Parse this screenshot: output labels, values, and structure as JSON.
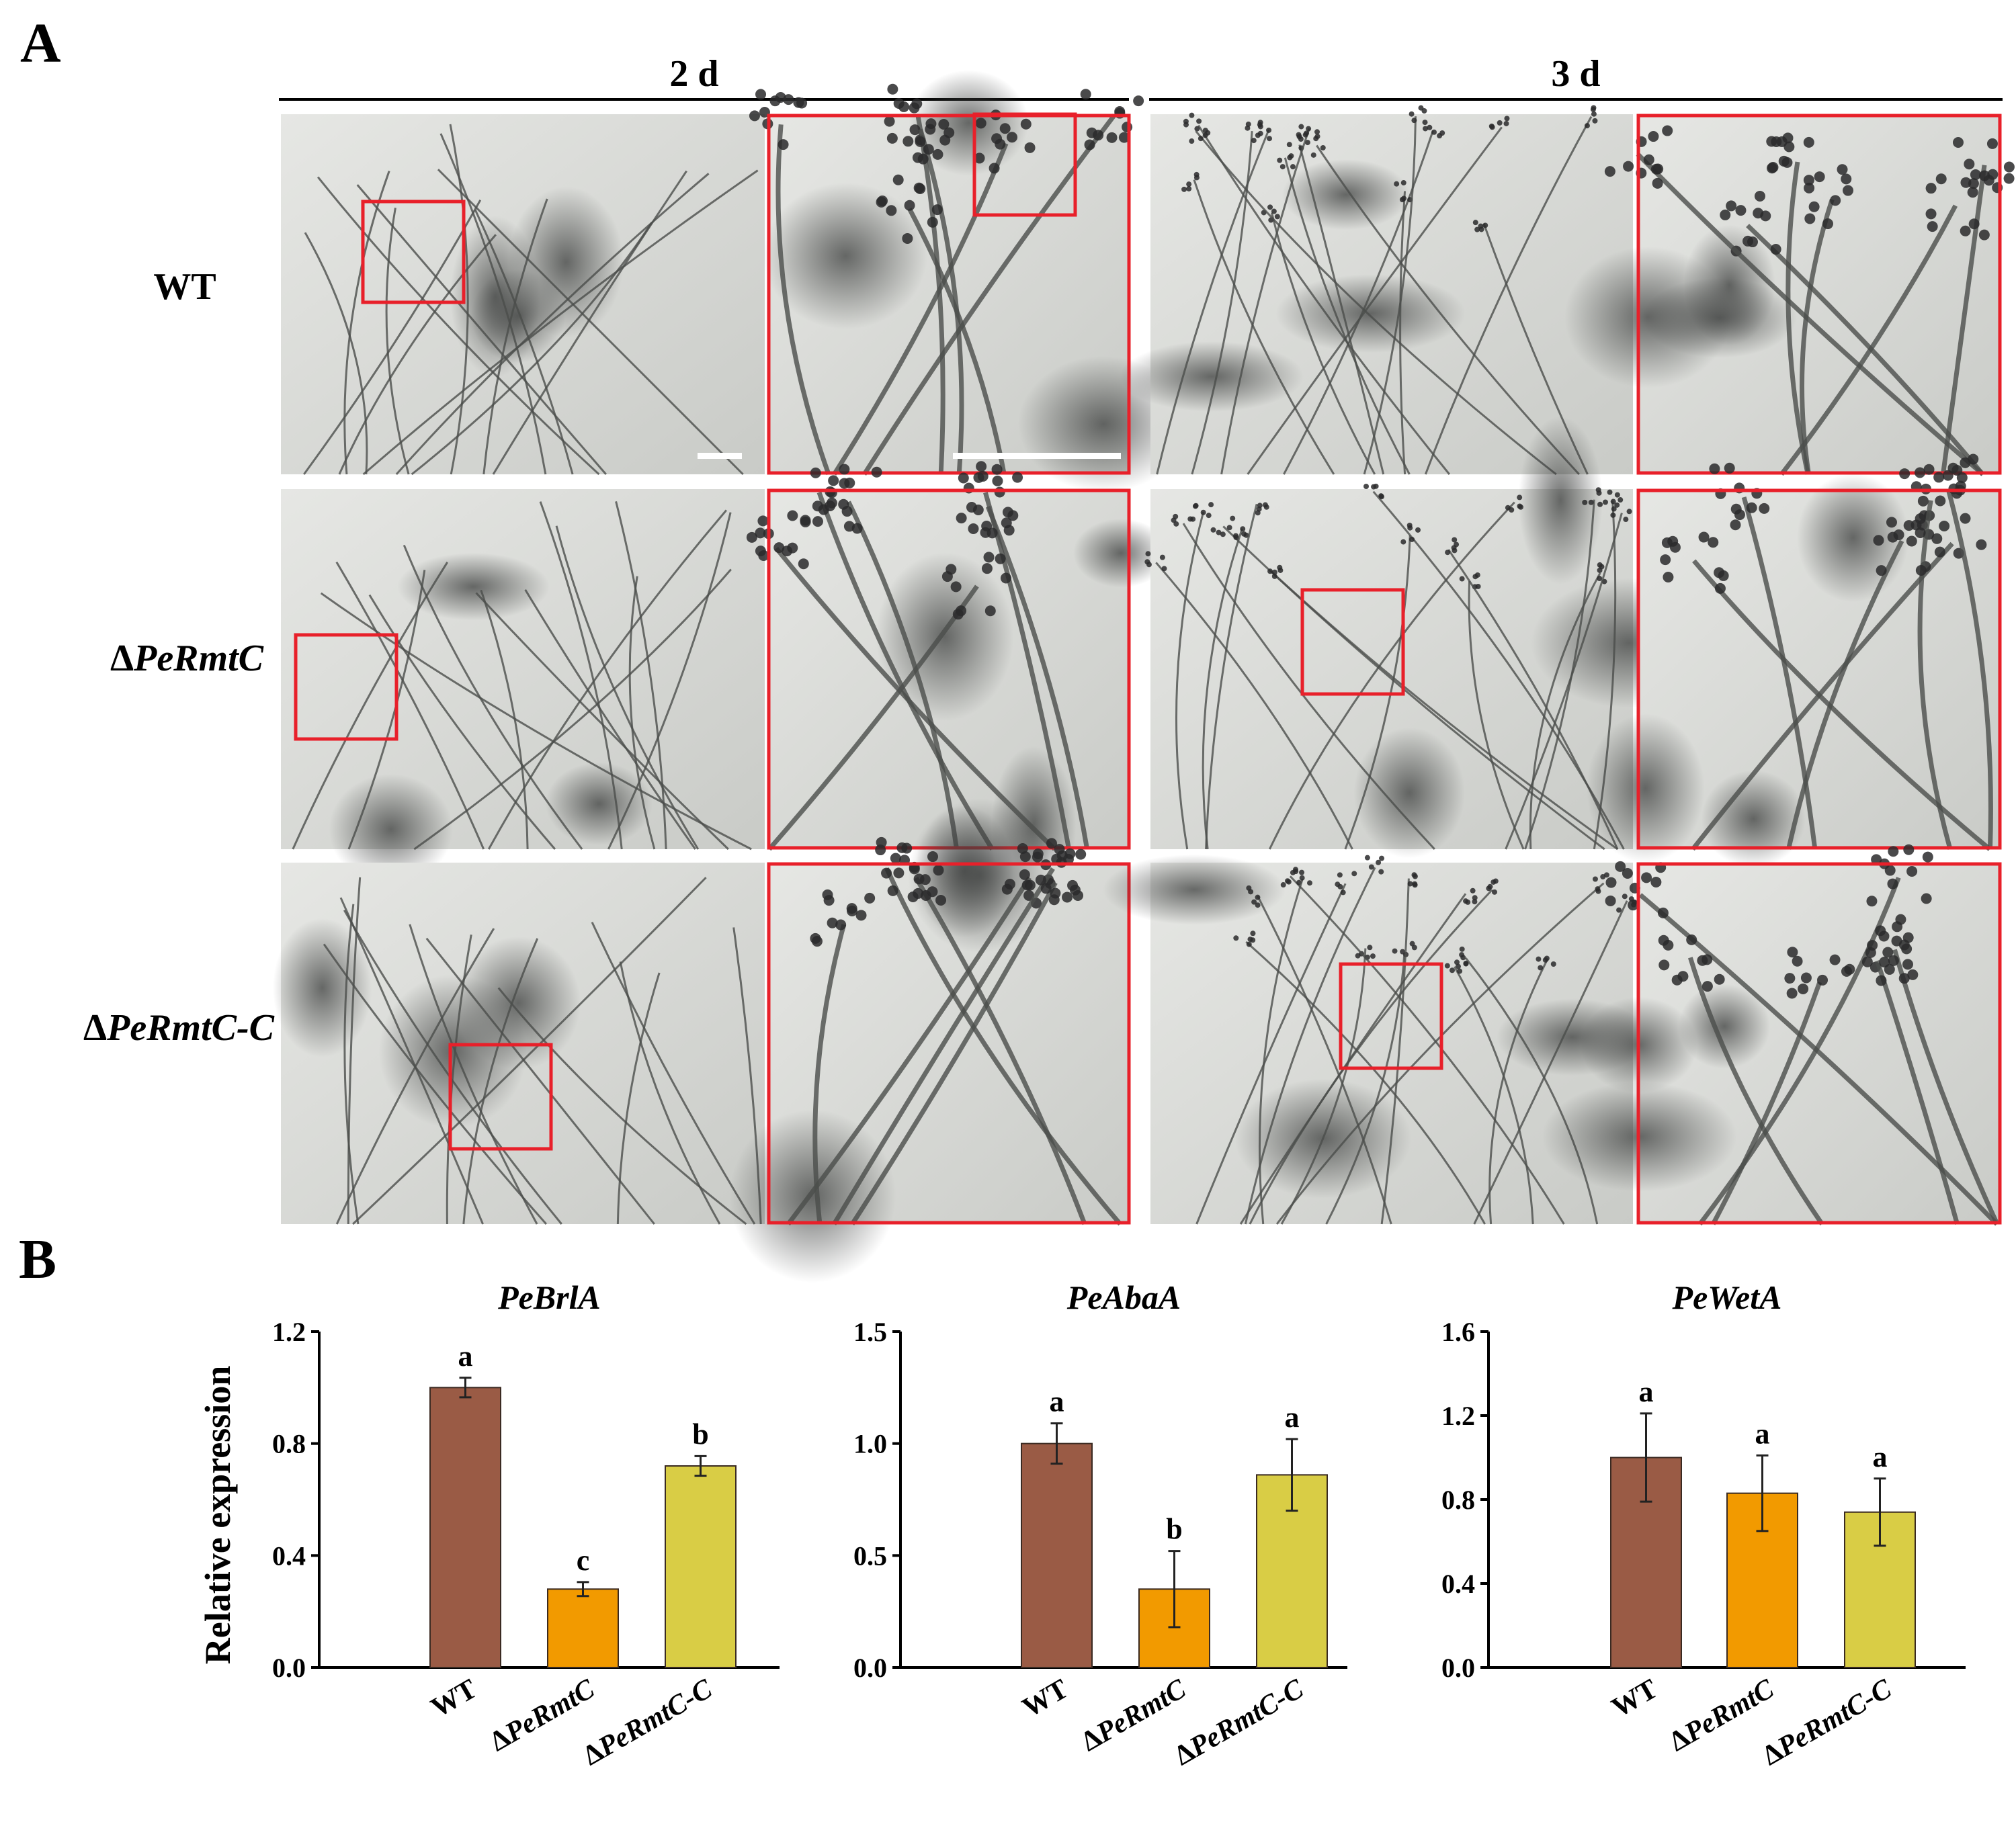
{
  "panel_a": {
    "letter": "A",
    "columns": [
      {
        "label": "2 d"
      },
      {
        "label": "3 d"
      }
    ],
    "rows": [
      {
        "label_prefix": "",
        "label": "WT",
        "italic": false
      },
      {
        "label_prefix": "Δ",
        "label": "PeRmtC",
        "italic": true
      },
      {
        "label_prefix": "Δ",
        "label": "PeRmtC-C",
        "italic": true
      }
    ],
    "colors": {
      "inset_frame": "#e8202a",
      "scale_bar": "#ffffff",
      "micrograph_bg": "#d7d8d5"
    }
  },
  "panel_b": {
    "letter": "B",
    "ylabel": "Relative expression",
    "bar_colors": [
      "#9a5b45",
      "#f29a00",
      "#d9cd45"
    ],
    "categories": [
      {
        "prefix": "",
        "label": "WT",
        "italic": false
      },
      {
        "prefix": "Δ",
        "label": "PeRmtC",
        "italic": true
      },
      {
        "prefix": "Δ",
        "label": "PeRmtC-C",
        "italic": true
      }
    ]
  },
  "chart_data": [
    {
      "type": "bar",
      "title": "PeBrlA",
      "ylabel": "Relative expression",
      "categories": [
        "WT",
        "ΔPeRmtC",
        "ΔPeRmtC-C"
      ],
      "values": [
        1.0,
        0.28,
        0.72
      ],
      "errors": [
        0.035,
        0.025,
        0.035
      ],
      "significance": [
        "a",
        "c",
        "b"
      ],
      "ylim": [
        0,
        1.2
      ],
      "yticks": [
        "0.0",
        "0.4",
        "0.8",
        "1.2"
      ],
      "ytick_values": [
        0,
        0.4,
        0.8,
        1.2
      ],
      "grid": false,
      "legend": "none"
    },
    {
      "type": "bar",
      "title": "PeAbaA",
      "ylabel": "",
      "categories": [
        "WT",
        "ΔPeRmtC",
        "ΔPeRmtC-C"
      ],
      "values": [
        1.0,
        0.35,
        0.86
      ],
      "errors": [
        0.09,
        0.17,
        0.16
      ],
      "significance": [
        "a",
        "b",
        "a"
      ],
      "ylim": [
        0,
        1.5
      ],
      "yticks": [
        "0.0",
        "0.5",
        "1.0",
        "1.5"
      ],
      "ytick_values": [
        0,
        0.5,
        1.0,
        1.5
      ],
      "grid": false,
      "legend": "none"
    },
    {
      "type": "bar",
      "title": "PeWetA",
      "ylabel": "",
      "categories": [
        "WT",
        "ΔPeRmtC",
        "ΔPeRmtC-C"
      ],
      "values": [
        1.0,
        0.83,
        0.74
      ],
      "errors": [
        0.21,
        0.18,
        0.16
      ],
      "significance": [
        "a",
        "a",
        "a"
      ],
      "ylim": [
        0,
        1.6
      ],
      "yticks": [
        "0.0",
        "0.4",
        "0.8",
        "1.2",
        "1.6"
      ],
      "ytick_values": [
        0,
        0.4,
        0.8,
        1.2,
        1.6
      ],
      "grid": false,
      "legend": "none"
    }
  ]
}
